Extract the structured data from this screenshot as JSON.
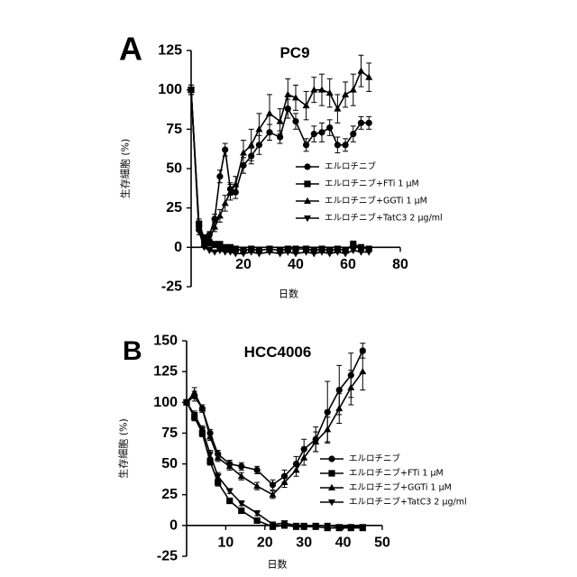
{
  "chart_data": [
    {
      "type": "line",
      "panel_label": "A",
      "title": "PC9",
      "xlabel": "日数",
      "ylabel": "生存細胞 (%)",
      "xlim": [
        0,
        80
      ],
      "ylim": [
        -25,
        125
      ],
      "xticks": [
        20,
        40,
        60,
        80
      ],
      "yticks": [
        -25,
        0,
        25,
        50,
        75,
        100,
        125
      ],
      "legend_position": "right",
      "series": [
        {
          "name": "エルロチニブ",
          "marker": "circle",
          "x": [
            0,
            3,
            5,
            7,
            9,
            11,
            13,
            15,
            17,
            20,
            23,
            26,
            30,
            34,
            37,
            40,
            44,
            47,
            50,
            53,
            56,
            59,
            62,
            65,
            68
          ],
          "y": [
            100,
            13,
            3,
            8,
            18,
            45,
            62,
            37,
            35,
            52,
            58,
            65,
            73,
            70,
            88,
            80,
            65,
            72,
            73,
            76,
            65,
            65,
            72,
            79,
            79
          ],
          "err": [
            3,
            2,
            2,
            2,
            3,
            4,
            4,
            4,
            4,
            5,
            5,
            6,
            5,
            4,
            6,
            5,
            4,
            5,
            6,
            5,
            5,
            4,
            5,
            4,
            4
          ]
        },
        {
          "name": "エルロチニブ+FTi 1 μM",
          "marker": "square",
          "x": [
            0,
            3,
            5,
            7,
            9,
            11,
            13,
            15,
            17,
            20,
            23,
            26,
            30,
            34,
            37,
            40,
            44,
            47,
            50,
            53,
            56,
            59,
            62,
            65,
            68
          ],
          "y": [
            100,
            15,
            6,
            3,
            2,
            2,
            0,
            0,
            -1,
            -2,
            -1,
            -2,
            -1,
            -2,
            -1,
            -1,
            -1,
            -2,
            -1,
            -2,
            -1,
            -2,
            2,
            0,
            -1
          ],
          "err": [
            3,
            3,
            2,
            2,
            1,
            1,
            1,
            1,
            1,
            1,
            1,
            1,
            1,
            1,
            1,
            1,
            1,
            1,
            1,
            1,
            1,
            1,
            2,
            1,
            1
          ]
        },
        {
          "name": "エルロチニブ+GGTi 1 μM",
          "marker": "triangle-up",
          "x": [
            0,
            3,
            5,
            7,
            9,
            11,
            13,
            15,
            17,
            20,
            23,
            26,
            30,
            34,
            37,
            40,
            44,
            47,
            50,
            53,
            56,
            59,
            62,
            65,
            68
          ],
          "y": [
            100,
            12,
            2,
            5,
            13,
            20,
            28,
            35,
            40,
            60,
            65,
            75,
            85,
            80,
            97,
            95,
            90,
            100,
            100,
            98,
            88,
            97,
            100,
            112,
            108
          ],
          "err": [
            3,
            2,
            2,
            2,
            3,
            4,
            5,
            5,
            5,
            8,
            10,
            10,
            12,
            8,
            10,
            8,
            9,
            8,
            10,
            9,
            9,
            8,
            10,
            10,
            9
          ]
        },
        {
          "name": "エルロチニブ+TatC3 2 μg/ml",
          "marker": "triangle-down",
          "x": [
            0,
            3,
            5,
            7,
            9,
            11,
            13,
            15,
            17,
            20,
            23,
            26,
            30,
            34,
            37,
            40,
            44,
            47,
            50,
            53,
            56,
            59,
            62,
            65,
            68
          ],
          "y": [
            100,
            10,
            0,
            -2,
            -3,
            -2,
            -3,
            -3,
            -4,
            -4,
            -3,
            -4,
            -3,
            -4,
            -3,
            -4,
            -3,
            -4,
            -3,
            -4,
            -3,
            -4,
            -2,
            -3,
            -3
          ],
          "err": [
            3,
            2,
            1,
            1,
            1,
            1,
            1,
            1,
            1,
            1,
            1,
            1,
            1,
            1,
            1,
            1,
            1,
            1,
            1,
            1,
            1,
            1,
            1,
            1,
            1
          ]
        }
      ]
    },
    {
      "type": "line",
      "panel_label": "B",
      "title": "HCC4006",
      "xlabel": "日数",
      "ylabel": "生存細胞 (%)",
      "xlim": [
        0,
        50
      ],
      "ylim": [
        -25,
        150
      ],
      "xticks": [
        10,
        20,
        30,
        40,
        50
      ],
      "yticks": [
        -25,
        0,
        25,
        50,
        75,
        100,
        125,
        150
      ],
      "legend_position": "right",
      "series": [
        {
          "name": "エルロチニブ",
          "marker": "circle",
          "x": [
            0,
            2,
            4,
            6,
            8,
            11,
            14,
            18,
            22,
            25,
            28,
            30,
            33,
            36,
            39,
            42,
            45
          ],
          "y": [
            100,
            105,
            95,
            75,
            58,
            50,
            48,
            45,
            33,
            40,
            50,
            62,
            70,
            92,
            110,
            122,
            142
          ],
          "err": [
            2,
            4,
            3,
            3,
            3,
            3,
            3,
            3,
            4,
            5,
            6,
            8,
            10,
            25,
            20,
            18,
            6
          ]
        },
        {
          "name": "エルロチニブ+FTi 1 μM",
          "marker": "square",
          "x": [
            0,
            2,
            4,
            6,
            8,
            11,
            14,
            18,
            22,
            25,
            28,
            30,
            33,
            36,
            39,
            42,
            45
          ],
          "y": [
            100,
            88,
            75,
            52,
            35,
            20,
            12,
            4,
            -1,
            0,
            -1,
            -1,
            -1,
            -2,
            -2,
            -2,
            -2
          ],
          "err": [
            2,
            3,
            3,
            3,
            3,
            2,
            2,
            1,
            1,
            1,
            1,
            1,
            1,
            1,
            1,
            1,
            1
          ]
        },
        {
          "name": "エルロチニブ+GGTi 1 μM",
          "marker": "triangle-up",
          "x": [
            0,
            2,
            4,
            6,
            8,
            11,
            14,
            18,
            22,
            25,
            28,
            30,
            33,
            36,
            39,
            42,
            45
          ],
          "y": [
            100,
            108,
            95,
            72,
            55,
            48,
            40,
            32,
            25,
            35,
            45,
            55,
            68,
            78,
            95,
            112,
            125
          ],
          "err": [
            2,
            4,
            3,
            3,
            3,
            3,
            3,
            3,
            3,
            4,
            5,
            6,
            8,
            10,
            12,
            14,
            15
          ]
        },
        {
          "name": "エルロチニブ+TatC3 2 μg/ml",
          "marker": "triangle-down",
          "x": [
            0,
            2,
            4,
            6,
            8,
            11,
            14,
            18,
            22,
            25,
            28,
            30,
            33,
            36,
            39,
            42,
            45
          ],
          "y": [
            100,
            90,
            78,
            58,
            40,
            28,
            18,
            10,
            1,
            2,
            0,
            0,
            0,
            0,
            -1,
            -1,
            -1
          ],
          "err": [
            2,
            3,
            3,
            3,
            3,
            2,
            2,
            2,
            1,
            1,
            1,
            1,
            1,
            1,
            1,
            1,
            1
          ]
        }
      ]
    }
  ]
}
